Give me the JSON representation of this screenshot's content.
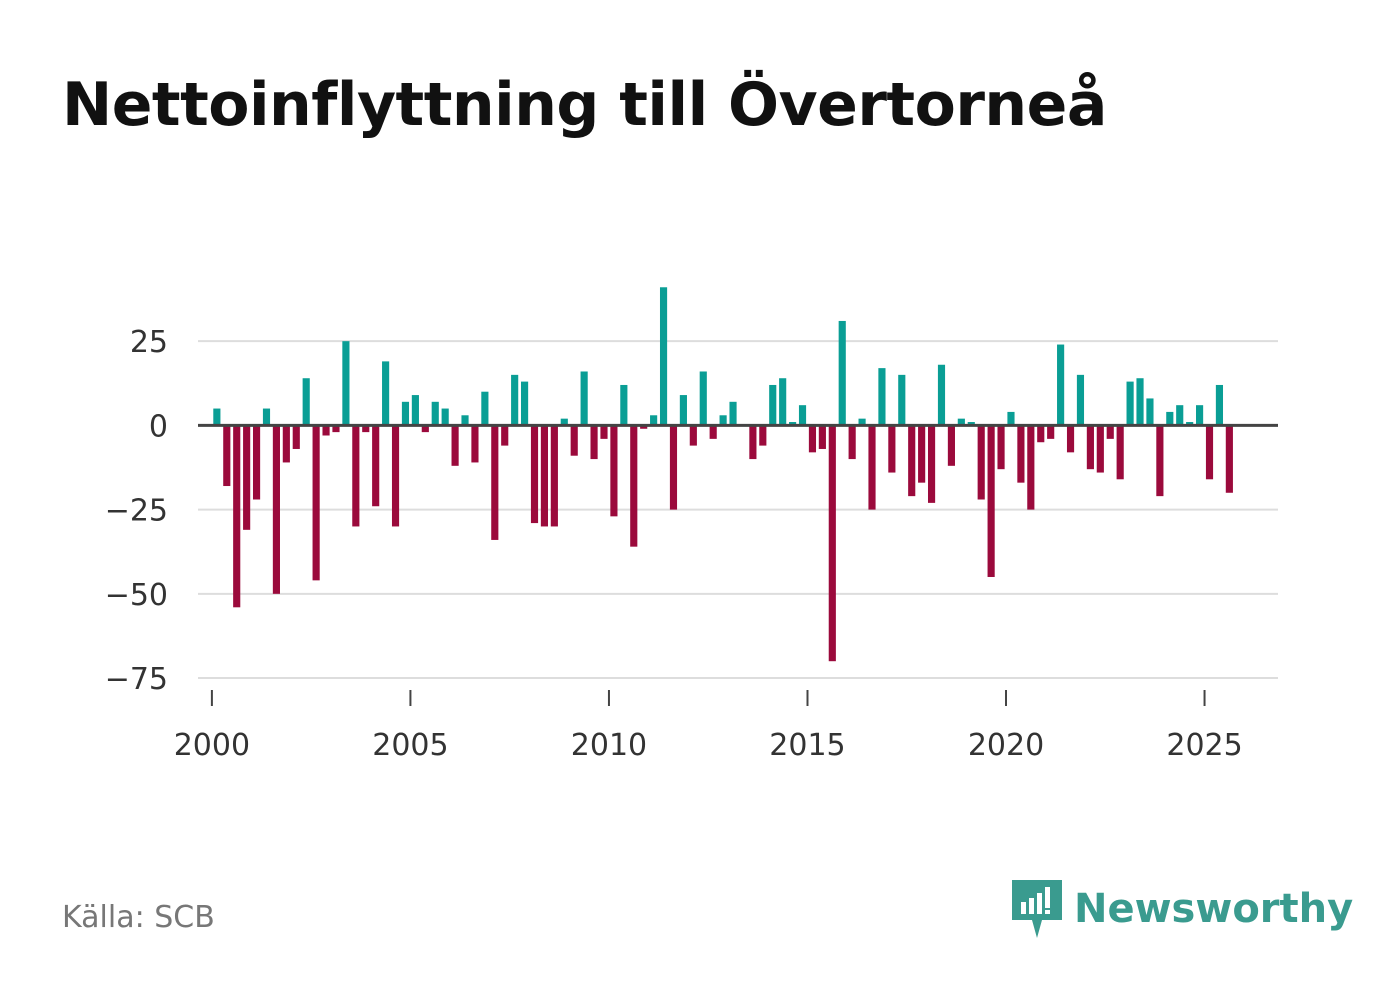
{
  "chart_data": {
    "type": "bar",
    "title": "Nettoinflyttning till Övertorneå",
    "xlabel": "",
    "ylabel": "",
    "xlim": [
      1999.65,
      2026.85
    ],
    "ylim": [
      -83,
      58
    ],
    "xticks": [
      {
        "value": 2000,
        "label": "2000"
      },
      {
        "value": 2005,
        "label": "2005"
      },
      {
        "value": 2010,
        "label": "2010"
      },
      {
        "value": 2015,
        "label": "2015"
      },
      {
        "value": 2020,
        "label": "2020"
      },
      {
        "value": 2025,
        "label": "2025"
      }
    ],
    "yticks": [
      {
        "value": 25,
        "label": "25"
      },
      {
        "value": 0,
        "label": "0"
      },
      {
        "value": -25,
        "label": "−25"
      },
      {
        "value": -50,
        "label": "−50"
      },
      {
        "value": -75,
        "label": "−75"
      }
    ],
    "positive_color": "#0a9e95",
    "negative_color": "#9b0a3c",
    "first_period": 2000,
    "periods_per_year": 4,
    "values": [
      5,
      -18,
      -54,
      -31,
      -22,
      5,
      -50,
      -11,
      -7,
      14,
      -46,
      -3,
      -2,
      25,
      -30,
      -2,
      -24,
      19,
      -30,
      7,
      9,
      -2,
      7,
      5,
      -12,
      3,
      -11,
      10,
      -34,
      -6,
      15,
      13,
      -29,
      -30,
      -30,
      2,
      -9,
      16,
      -10,
      -4,
      -27,
      12,
      -36,
      -1,
      3,
      41,
      -25,
      9,
      -6,
      16,
      -4,
      3,
      7,
      0,
      -10,
      -6,
      12,
      14,
      1,
      6,
      -8,
      -7,
      -70,
      31,
      -10,
      2,
      -25,
      17,
      -14,
      15,
      -21,
      -17,
      -23,
      18,
      -12,
      2,
      1,
      -22,
      -45,
      -13,
      4,
      -17,
      -25,
      -5,
      -4,
      24,
      -8,
      15,
      -13,
      -14,
      -4,
      -16,
      13,
      14,
      8,
      -21,
      4,
      6,
      1,
      6,
      -16,
      12,
      -20
    ]
  },
  "footer": {
    "source": "Källa: SCB",
    "brand": "Newsworthy",
    "brand_color": "#3a9b8f"
  },
  "icons": {
    "brand_logo": "newsworthy-logo-icon"
  }
}
